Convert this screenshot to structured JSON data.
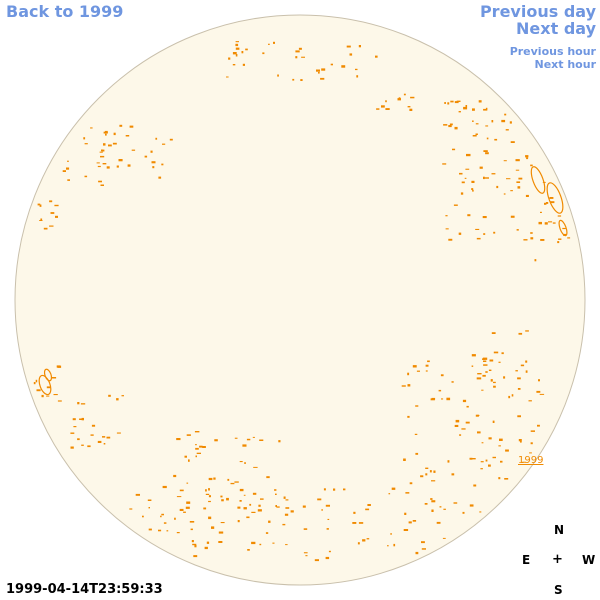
{
  "nav": {
    "back_label": "Back to 1999",
    "previous_day_label": "Previous day",
    "next_day_label": "Next day",
    "previous_hour_label": "Previous hour",
    "next_hour_label": "Next hour"
  },
  "map": {
    "timestamp": "1999-04-14T23:59:33",
    "region_label": "1999",
    "colors": {
      "disk_fill": "#fdf8e9",
      "disk_outline": "#c9c0ac",
      "feature": "#f08a00",
      "link": "#6f96e0"
    }
  },
  "compass": {
    "north": "N",
    "east": "E",
    "center": "+",
    "west": "W",
    "south": "S"
  }
}
